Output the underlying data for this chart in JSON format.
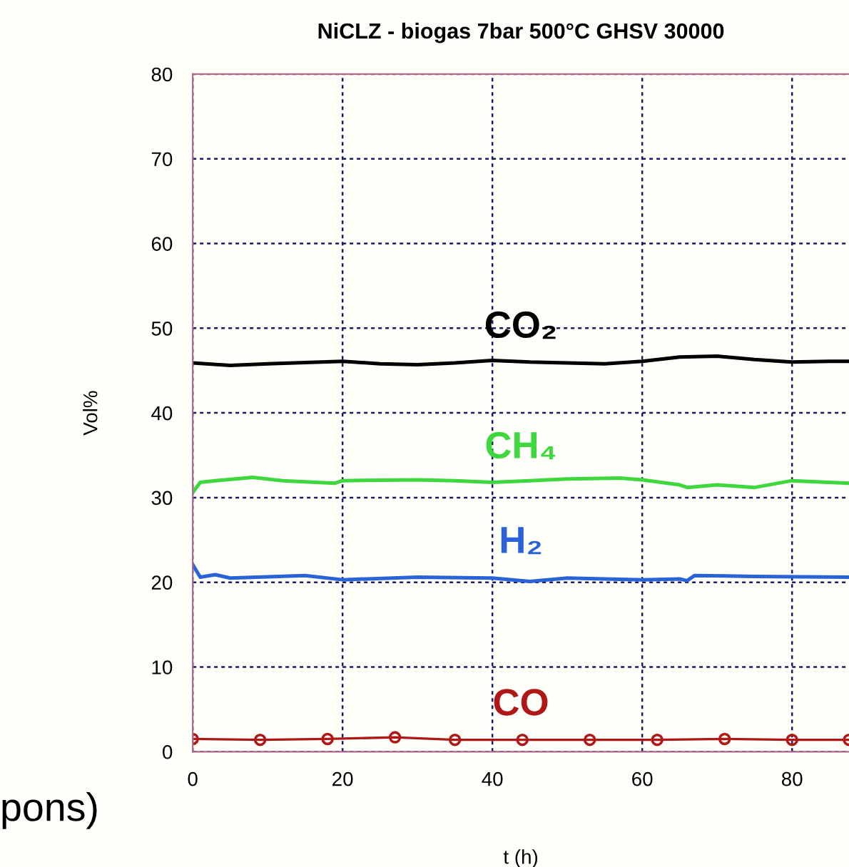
{
  "chart_data": {
    "type": "line",
    "title": "NiCLZ - biogas 7bar 500°C GHSV 30000",
    "xlabel": "t (h)",
    "ylabel": "Vol%",
    "xlim": [
      0,
      87.6
    ],
    "ylim": [
      0,
      80
    ],
    "xticks": [
      0,
      20,
      40,
      60,
      80
    ],
    "yticks": [
      0,
      10,
      20,
      30,
      40,
      50,
      60,
      70,
      80
    ],
    "grid": true,
    "legend": false,
    "line_style": "solid",
    "annotations": [
      "pons)"
    ],
    "series": [
      {
        "name": "CO₂",
        "color": "#000000",
        "marker": "none",
        "x": [
          0,
          5,
          10,
          20,
          25,
          30,
          35,
          40,
          45,
          50,
          55,
          60,
          65,
          70,
          75,
          80,
          85,
          87.6
        ],
        "values": [
          45.9,
          45.6,
          45.8,
          46.1,
          45.8,
          45.7,
          45.9,
          46.2,
          46.0,
          45.9,
          45.8,
          46.1,
          46.6,
          46.7,
          46.3,
          46.0,
          46.1,
          46.1
        ]
      },
      {
        "name": "CH₄",
        "color": "#3ed83e",
        "marker": "none",
        "x": [
          0,
          1,
          3,
          8,
          12,
          19,
          20,
          30,
          35,
          40,
          45,
          50,
          57,
          60,
          65,
          66,
          70,
          75,
          80,
          87.6
        ],
        "values": [
          30.6,
          31.8,
          32.0,
          32.4,
          32.0,
          31.7,
          32.0,
          32.1,
          32.0,
          31.8,
          32.0,
          32.2,
          32.3,
          32.1,
          31.5,
          31.2,
          31.5,
          31.2,
          32.0,
          31.7
        ]
      },
      {
        "name": "H₂",
        "color": "#2a62d8",
        "marker": "none",
        "x": [
          0,
          1,
          3,
          5,
          15,
          20,
          30,
          40,
          45,
          50,
          60,
          65,
          66,
          67,
          75,
          87.6
        ],
        "values": [
          22.1,
          20.6,
          20.9,
          20.5,
          20.8,
          20.3,
          20.6,
          20.5,
          20.1,
          20.5,
          20.3,
          20.4,
          20.2,
          20.8,
          20.7,
          20.6
        ]
      },
      {
        "name": "CO",
        "color": "#b01818",
        "marker": "circle",
        "x": [
          0,
          9,
          18,
          27,
          35,
          44,
          53,
          62,
          71,
          80,
          87.6
        ],
        "values": [
          1.5,
          1.4,
          1.5,
          1.7,
          1.4,
          1.4,
          1.4,
          1.4,
          1.5,
          1.4,
          1.4
        ]
      }
    ]
  }
}
